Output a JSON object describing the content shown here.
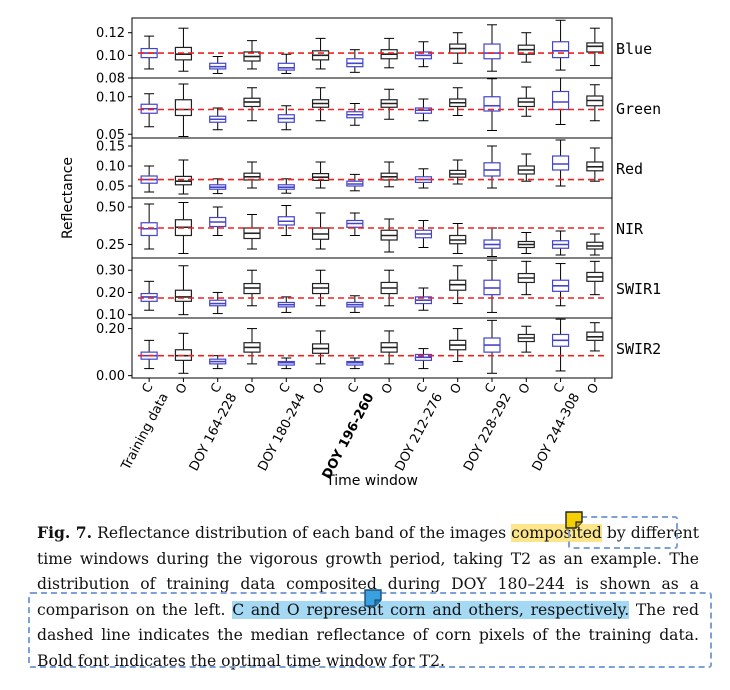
{
  "chart_data": {
    "type": "boxplot",
    "xlabel": "Time window",
    "ylabel": "Reflectance",
    "groups": [
      "Training data",
      "DOY 164-228",
      "DOY 180-244",
      "DOY 196-260",
      "DOY 212-276",
      "DOY 228-292",
      "DOY 244-308"
    ],
    "bold_group": "DOY 196-260",
    "classes": [
      "C",
      "O"
    ],
    "box_colors": {
      "C": "#4444cc",
      "O": "#222222"
    },
    "median_line_color": "#ee2222",
    "median_line_style": "dashed",
    "panels": [
      {
        "band": "Blue",
        "ylim": [
          0.08,
          0.133
        ],
        "yticks": [
          0.08,
          0.1,
          0.12
        ],
        "ytick_labels": [
          "0.08",
          "0.10",
          "0.12"
        ],
        "ref_median": 0.102,
        "boxes": [
          {
            "whislo": 0.088,
            "q1": 0.098,
            "med": 0.102,
            "q3": 0.106,
            "whishi": 0.117
          },
          {
            "whislo": 0.086,
            "q1": 0.096,
            "med": 0.101,
            "q3": 0.107,
            "whishi": 0.124
          },
          {
            "whislo": 0.084,
            "q1": 0.088,
            "med": 0.09,
            "q3": 0.093,
            "whishi": 0.099
          },
          {
            "whislo": 0.088,
            "q1": 0.095,
            "med": 0.099,
            "q3": 0.103,
            "whishi": 0.113
          },
          {
            "whislo": 0.084,
            "q1": 0.087,
            "med": 0.089,
            "q3": 0.093,
            "whishi": 0.101
          },
          {
            "whislo": 0.088,
            "q1": 0.096,
            "med": 0.1,
            "q3": 0.104,
            "whishi": 0.115
          },
          {
            "whislo": 0.085,
            "q1": 0.09,
            "med": 0.093,
            "q3": 0.097,
            "whishi": 0.105
          },
          {
            "whislo": 0.089,
            "q1": 0.097,
            "med": 0.101,
            "q3": 0.105,
            "whishi": 0.115
          },
          {
            "whislo": 0.09,
            "q1": 0.097,
            "med": 0.1,
            "q3": 0.103,
            "whishi": 0.112
          },
          {
            "whislo": 0.093,
            "q1": 0.102,
            "med": 0.106,
            "q3": 0.11,
            "whishi": 0.12
          },
          {
            "whislo": 0.086,
            "q1": 0.097,
            "med": 0.102,
            "q3": 0.11,
            "whishi": 0.127
          },
          {
            "whislo": 0.094,
            "q1": 0.101,
            "med": 0.105,
            "q3": 0.109,
            "whishi": 0.12
          },
          {
            "whislo": 0.087,
            "q1": 0.098,
            "med": 0.104,
            "q3": 0.112,
            "whishi": 0.131
          },
          {
            "whislo": 0.091,
            "q1": 0.103,
            "med": 0.108,
            "q3": 0.111,
            "whishi": 0.124
          }
        ]
      },
      {
        "band": "Green",
        "ylim": [
          0.045,
          0.125
        ],
        "yticks": [
          0.05,
          0.1
        ],
        "ytick_labels": [
          "0.05",
          "0.10"
        ],
        "ref_median": 0.083,
        "boxes": [
          {
            "whislo": 0.06,
            "q1": 0.078,
            "med": 0.084,
            "q3": 0.09,
            "whishi": 0.104
          },
          {
            "whislo": 0.047,
            "q1": 0.075,
            "med": 0.083,
            "q3": 0.096,
            "whishi": 0.117
          },
          {
            "whislo": 0.056,
            "q1": 0.066,
            "med": 0.07,
            "q3": 0.074,
            "whishi": 0.085
          },
          {
            "whislo": 0.068,
            "q1": 0.087,
            "med": 0.093,
            "q3": 0.098,
            "whishi": 0.112
          },
          {
            "whislo": 0.056,
            "q1": 0.066,
            "med": 0.071,
            "q3": 0.076,
            "whishi": 0.088
          },
          {
            "whislo": 0.068,
            "q1": 0.086,
            "med": 0.091,
            "q3": 0.096,
            "whishi": 0.112
          },
          {
            "whislo": 0.062,
            "q1": 0.072,
            "med": 0.076,
            "q3": 0.08,
            "whishi": 0.091
          },
          {
            "whislo": 0.07,
            "q1": 0.086,
            "med": 0.091,
            "q3": 0.096,
            "whishi": 0.11
          },
          {
            "whislo": 0.068,
            "q1": 0.078,
            "med": 0.082,
            "q3": 0.085,
            "whishi": 0.097
          },
          {
            "whislo": 0.075,
            "q1": 0.087,
            "med": 0.092,
            "q3": 0.097,
            "whishi": 0.112
          },
          {
            "whislo": 0.055,
            "q1": 0.081,
            "med": 0.088,
            "q3": 0.1,
            "whishi": 0.124
          },
          {
            "whislo": 0.074,
            "q1": 0.087,
            "med": 0.093,
            "q3": 0.098,
            "whishi": 0.113
          },
          {
            "whislo": 0.063,
            "q1": 0.083,
            "med": 0.093,
            "q3": 0.107,
            "whishi": 0.125
          },
          {
            "whislo": 0.068,
            "q1": 0.088,
            "med": 0.095,
            "q3": 0.101,
            "whishi": 0.116
          }
        ]
      },
      {
        "band": "Red",
        "ylim": [
          0.02,
          0.17
        ],
        "yticks": [
          0.05,
          0.1,
          0.15
        ],
        "ytick_labels": [
          "0.05",
          "0.10",
          "0.15"
        ],
        "ref_median": 0.066,
        "boxes": [
          {
            "whislo": 0.035,
            "q1": 0.057,
            "med": 0.066,
            "q3": 0.075,
            "whishi": 0.1
          },
          {
            "whislo": 0.03,
            "q1": 0.053,
            "med": 0.062,
            "q3": 0.074,
            "whishi": 0.115
          },
          {
            "whislo": 0.031,
            "q1": 0.042,
            "med": 0.047,
            "q3": 0.053,
            "whishi": 0.068
          },
          {
            "whislo": 0.045,
            "q1": 0.065,
            "med": 0.073,
            "q3": 0.082,
            "whishi": 0.11
          },
          {
            "whislo": 0.032,
            "q1": 0.042,
            "med": 0.047,
            "q3": 0.053,
            "whishi": 0.068
          },
          {
            "whislo": 0.045,
            "q1": 0.064,
            "med": 0.072,
            "q3": 0.081,
            "whishi": 0.11
          },
          {
            "whislo": 0.038,
            "q1": 0.05,
            "med": 0.055,
            "q3": 0.062,
            "whishi": 0.079
          },
          {
            "whislo": 0.048,
            "q1": 0.065,
            "med": 0.073,
            "q3": 0.082,
            "whishi": 0.11
          },
          {
            "whislo": 0.045,
            "q1": 0.059,
            "med": 0.066,
            "q3": 0.073,
            "whishi": 0.093
          },
          {
            "whislo": 0.055,
            "q1": 0.072,
            "med": 0.08,
            "q3": 0.089,
            "whishi": 0.115
          },
          {
            "whislo": 0.045,
            "q1": 0.075,
            "med": 0.09,
            "q3": 0.108,
            "whishi": 0.15
          },
          {
            "whislo": 0.062,
            "q1": 0.08,
            "med": 0.09,
            "q3": 0.1,
            "whishi": 0.13
          },
          {
            "whislo": 0.05,
            "q1": 0.09,
            "med": 0.105,
            "q3": 0.125,
            "whishi": 0.165
          },
          {
            "whislo": 0.062,
            "q1": 0.088,
            "med": 0.098,
            "q3": 0.11,
            "whishi": 0.145
          }
        ]
      },
      {
        "band": "NIR",
        "ylim": [
          0.16,
          0.56
        ],
        "yticks": [
          0.25,
          0.5
        ],
        "ytick_labels": [
          "0.25",
          "0.50"
        ],
        "ref_median": 0.36,
        "boxes": [
          {
            "whislo": 0.22,
            "q1": 0.31,
            "med": 0.355,
            "q3": 0.395,
            "whishi": 0.52
          },
          {
            "whislo": 0.19,
            "q1": 0.31,
            "med": 0.365,
            "q3": 0.415,
            "whishi": 0.53
          },
          {
            "whislo": 0.31,
            "q1": 0.37,
            "med": 0.4,
            "q3": 0.43,
            "whishi": 0.5
          },
          {
            "whislo": 0.22,
            "q1": 0.29,
            "med": 0.325,
            "q3": 0.36,
            "whishi": 0.45
          },
          {
            "whislo": 0.31,
            "q1": 0.38,
            "med": 0.405,
            "q3": 0.435,
            "whishi": 0.51
          },
          {
            "whislo": 0.22,
            "q1": 0.285,
            "med": 0.32,
            "q3": 0.36,
            "whishi": 0.46
          },
          {
            "whislo": 0.31,
            "q1": 0.365,
            "med": 0.39,
            "q3": 0.41,
            "whishi": 0.46
          },
          {
            "whislo": 0.2,
            "q1": 0.28,
            "med": 0.31,
            "q3": 0.345,
            "whishi": 0.42
          },
          {
            "whislo": 0.23,
            "q1": 0.295,
            "med": 0.32,
            "q3": 0.345,
            "whishi": 0.41
          },
          {
            "whislo": 0.19,
            "q1": 0.255,
            "med": 0.28,
            "q3": 0.31,
            "whishi": 0.39
          },
          {
            "whislo": 0.17,
            "q1": 0.225,
            "med": 0.25,
            "q3": 0.28,
            "whishi": 0.36
          },
          {
            "whislo": 0.19,
            "q1": 0.23,
            "med": 0.25,
            "q3": 0.27,
            "whishi": 0.33
          },
          {
            "whislo": 0.18,
            "q1": 0.225,
            "med": 0.25,
            "q3": 0.275,
            "whishi": 0.34
          },
          {
            "whislo": 0.18,
            "q1": 0.22,
            "med": 0.24,
            "q3": 0.265,
            "whishi": 0.32
          }
        ]
      },
      {
        "band": "SWIR1",
        "ylim": [
          0.085,
          0.355
        ],
        "yticks": [
          0.1,
          0.2,
          0.3
        ],
        "ytick_labels": [
          "0.10",
          "0.20",
          "0.30"
        ],
        "ref_median": 0.175,
        "boxes": [
          {
            "whislo": 0.12,
            "q1": 0.16,
            "med": 0.18,
            "q3": 0.195,
            "whishi": 0.25
          },
          {
            "whislo": 0.1,
            "q1": 0.16,
            "med": 0.18,
            "q3": 0.21,
            "whishi": 0.32
          },
          {
            "whislo": 0.105,
            "q1": 0.14,
            "med": 0.15,
            "q3": 0.165,
            "whishi": 0.2
          },
          {
            "whislo": 0.14,
            "q1": 0.195,
            "med": 0.22,
            "q3": 0.24,
            "whishi": 0.3
          },
          {
            "whislo": 0.11,
            "q1": 0.135,
            "med": 0.145,
            "q3": 0.155,
            "whishi": 0.18
          },
          {
            "whislo": 0.14,
            "q1": 0.195,
            "med": 0.22,
            "q3": 0.24,
            "whishi": 0.3
          },
          {
            "whislo": 0.11,
            "q1": 0.135,
            "med": 0.145,
            "q3": 0.155,
            "whishi": 0.185
          },
          {
            "whislo": 0.14,
            "q1": 0.195,
            "med": 0.22,
            "q3": 0.245,
            "whishi": 0.3
          },
          {
            "whislo": 0.12,
            "q1": 0.15,
            "med": 0.165,
            "q3": 0.18,
            "whishi": 0.22
          },
          {
            "whislo": 0.15,
            "q1": 0.21,
            "med": 0.235,
            "q3": 0.255,
            "whishi": 0.32
          },
          {
            "whislo": 0.11,
            "q1": 0.19,
            "med": 0.22,
            "q3": 0.255,
            "whishi": 0.345
          },
          {
            "whislo": 0.19,
            "q1": 0.245,
            "med": 0.265,
            "q3": 0.285,
            "whishi": 0.34
          },
          {
            "whislo": 0.14,
            "q1": 0.205,
            "med": 0.23,
            "q3": 0.255,
            "whishi": 0.33
          },
          {
            "whislo": 0.19,
            "q1": 0.25,
            "med": 0.27,
            "q3": 0.29,
            "whishi": 0.34
          }
        ]
      },
      {
        "band": "SWIR2",
        "ylim": [
          -0.01,
          0.245
        ],
        "yticks": [
          0.0,
          0.2
        ],
        "ytick_labels": [
          "0.00",
          "0.20"
        ],
        "ref_median": 0.085,
        "boxes": [
          {
            "whislo": 0.03,
            "q1": 0.07,
            "med": 0.085,
            "q3": 0.1,
            "whishi": 0.15
          },
          {
            "whislo": 0.01,
            "q1": 0.065,
            "med": 0.085,
            "q3": 0.11,
            "whishi": 0.18
          },
          {
            "whislo": 0.03,
            "q1": 0.05,
            "med": 0.06,
            "q3": 0.07,
            "whishi": 0.085
          },
          {
            "whislo": 0.05,
            "q1": 0.1,
            "med": 0.12,
            "q3": 0.14,
            "whishi": 0.2
          },
          {
            "whislo": 0.03,
            "q1": 0.045,
            "med": 0.055,
            "q3": 0.06,
            "whishi": 0.075
          },
          {
            "whislo": 0.05,
            "q1": 0.095,
            "med": 0.115,
            "q3": 0.135,
            "whishi": 0.19
          },
          {
            "whislo": 0.03,
            "q1": 0.045,
            "med": 0.055,
            "q3": 0.06,
            "whishi": 0.075
          },
          {
            "whislo": 0.05,
            "q1": 0.1,
            "med": 0.12,
            "q3": 0.14,
            "whishi": 0.19
          },
          {
            "whislo": 0.03,
            "q1": 0.065,
            "med": 0.078,
            "q3": 0.09,
            "whishi": 0.115
          },
          {
            "whislo": 0.06,
            "q1": 0.11,
            "med": 0.13,
            "q3": 0.15,
            "whishi": 0.2
          },
          {
            "whislo": 0.01,
            "q1": 0.1,
            "med": 0.13,
            "q3": 0.16,
            "whishi": 0.235
          },
          {
            "whislo": 0.1,
            "q1": 0.145,
            "med": 0.16,
            "q3": 0.175,
            "whishi": 0.21
          },
          {
            "whislo": 0.02,
            "q1": 0.125,
            "med": 0.15,
            "q3": 0.175,
            "whishi": 0.24
          },
          {
            "whislo": 0.105,
            "q1": 0.15,
            "med": 0.165,
            "q3": 0.185,
            "whishi": 0.225
          }
        ]
      }
    ]
  },
  "caption": {
    "label": "Fig. 7.",
    "t1": " Reflectance distribution of each band of the images ",
    "t2": "composited",
    "t3": " by different time windows during the vigorous growth period, taking T2 as an example. The distribution of training data composited during DOY 180–244 is shown as a comparison on the left. ",
    "t4": "C and O represent corn and others, respectively.",
    "t5": " The red dashed line indicates the median reflectance of corn pixels of the training data. Bold font indicates the optimal time window for T2."
  },
  "annotations": {
    "highlight_yellow": "#fde68a",
    "highlight_blue": "#a5d8f3",
    "box_border": "#7da0d8",
    "yellow_note_icon": "sticky-note-yellow-icon",
    "blue_note_icon": "sticky-note-blue-icon"
  }
}
